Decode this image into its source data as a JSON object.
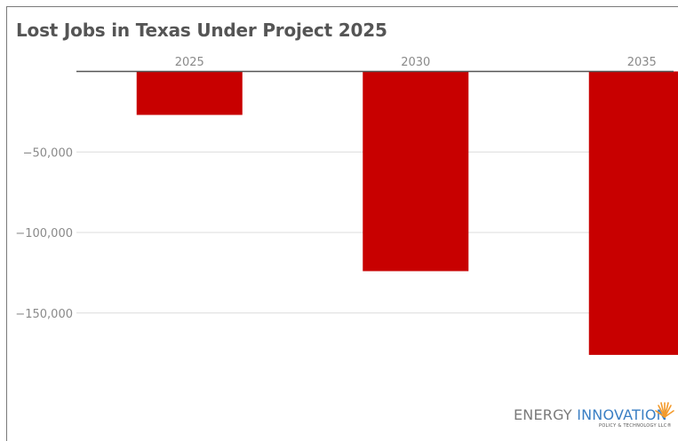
{
  "title": "Lost Jobs in Texas Under Project 2025",
  "chart_data": {
    "type": "bar",
    "title": "Lost Jobs in Texas Under Project 2025",
    "categories": [
      "2025",
      "2030",
      "2035"
    ],
    "values": [
      -27000,
      -124000,
      -176000
    ],
    "xlabel": "",
    "ylabel": "",
    "ylim": [
      -200000,
      0
    ],
    "yticks": [
      -50000,
      -100000,
      -150000
    ],
    "ytick_labels": [
      "−50,000",
      "−100,000",
      "−150,000"
    ],
    "grid": true,
    "bar_color": "#c80000"
  },
  "logo": {
    "word1": "ENERGY",
    "word2": "INNOVATION",
    "tagline": "POLICY & TECHNOLOGY LLC®"
  }
}
